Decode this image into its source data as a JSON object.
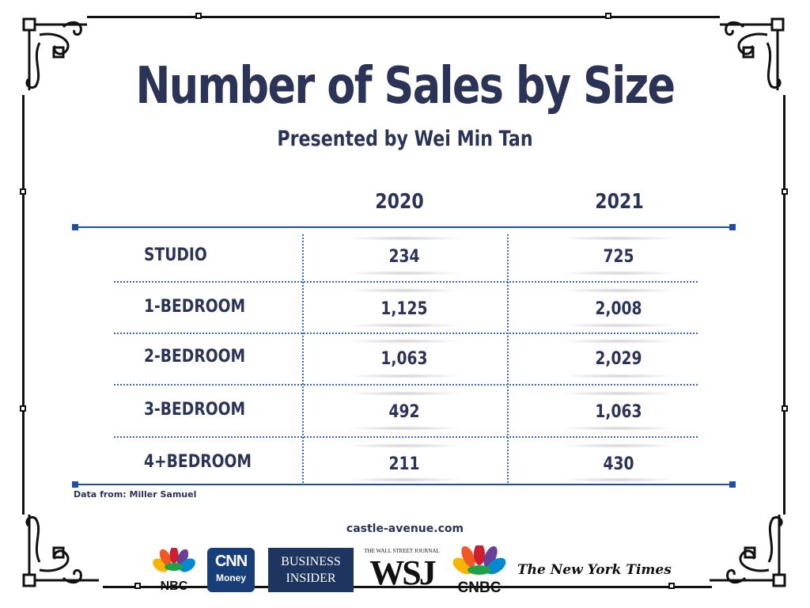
{
  "title": "Number of Sales by Size",
  "subtitle": "Presented by Wei Min Tan",
  "table": {
    "columns": [
      "2020",
      "2021"
    ],
    "rows": [
      {
        "label": "STUDIO",
        "v2020": "234",
        "v2021": "725"
      },
      {
        "label": "1-BEDROOM",
        "v2020": "1,125",
        "v2021": "2,008"
      },
      {
        "label": "2-BEDROOM",
        "v2020": "1,063",
        "v2021": "2,029"
      },
      {
        "label": "3-BEDROOM",
        "v2020": "492",
        "v2021": "1,063"
      },
      {
        "label": "4+BEDROOM",
        "v2020": "211",
        "v2021": "430"
      }
    ]
  },
  "source": "Data from: Miller Samuel",
  "site": "castle-avenue.com",
  "logos": {
    "nbc": "NBC",
    "cnn_top": "CNN",
    "cnn_bottom": "Money",
    "bi_top": "BUSINESS",
    "bi_bottom": "INSIDER",
    "wsj_top": "THE WALL STREET JOURNAL",
    "wsj": "WSJ",
    "cnbc": "CNBC",
    "nyt": "The New York Times"
  },
  "colors": {
    "text": "#2b3357",
    "rule": "#1f4ea8",
    "frame": "#111111"
  },
  "chart_data": {
    "type": "table",
    "title": "Number of Sales by Size",
    "subtitle": "Presented by Wei Min Tan",
    "columns": [
      "2020",
      "2021"
    ],
    "categories": [
      "STUDIO",
      "1-BEDROOM",
      "2-BEDROOM",
      "3-BEDROOM",
      "4+BEDROOM"
    ],
    "series": [
      {
        "name": "2020",
        "values": [
          234,
          1125,
          1063,
          492,
          211
        ]
      },
      {
        "name": "2021",
        "values": [
          725,
          2008,
          2029,
          1063,
          430
        ]
      }
    ]
  }
}
